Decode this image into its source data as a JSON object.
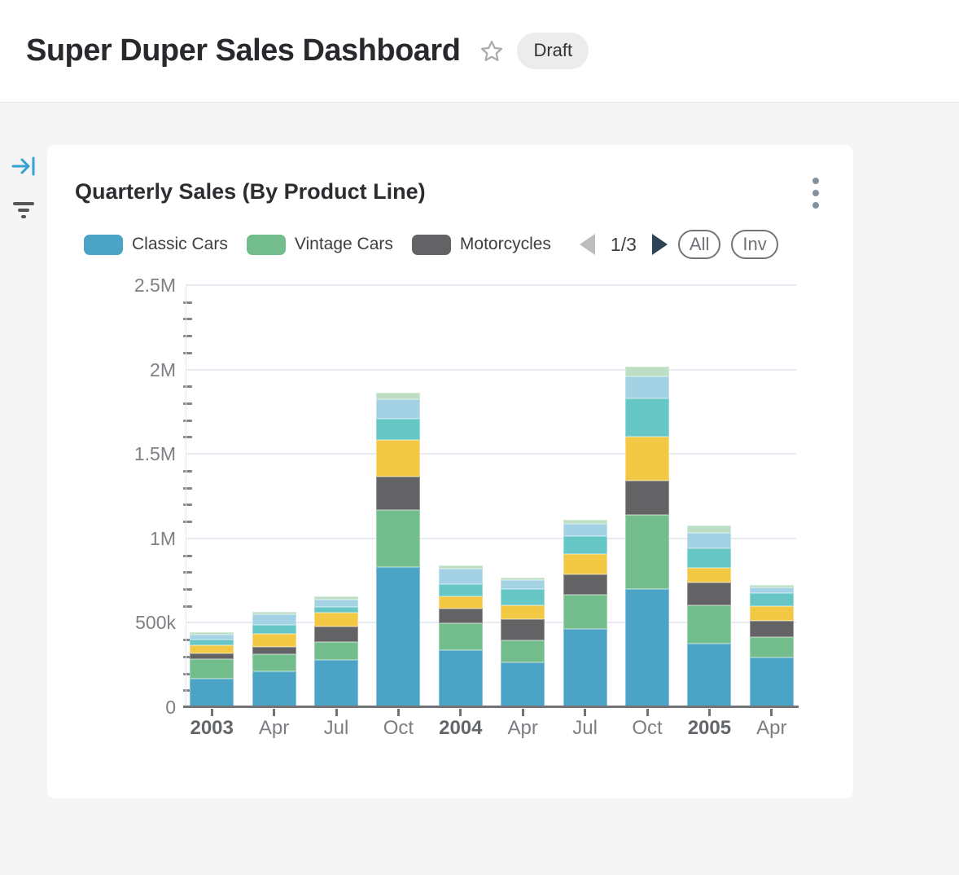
{
  "header": {
    "title": "Super Duper Sales Dashboard",
    "badge": "Draft"
  },
  "sidebar": {
    "icons": [
      "collapse-right-icon",
      "filter-icon"
    ]
  },
  "card": {
    "title": "Quarterly Sales (By Product Line)",
    "menu_icon": "kebab-menu-icon"
  },
  "legend": {
    "items": [
      {
        "label": "Classic Cars",
        "color": "#4ba3c6"
      },
      {
        "label": "Vintage Cars",
        "color": "#73bd8c"
      },
      {
        "label": "Motorcycles",
        "color": "#636365"
      }
    ],
    "page_indicator": "1/3",
    "prev_enabled": false,
    "next_enabled": true,
    "all_label": "All",
    "inv_label": "Inv"
  },
  "chart_data": {
    "type": "bar",
    "stacked": true,
    "title": "Quarterly Sales (By Product Line)",
    "categories": [
      "2003",
      "Apr",
      "Jul",
      "Oct",
      "2004",
      "Apr",
      "Jul",
      "Oct",
      "2005",
      "Apr"
    ],
    "bold_category_indices": [
      0,
      4,
      8
    ],
    "series": [
      {
        "name": "Classic Cars",
        "color": "#4ba3c6",
        "values": [
          169000,
          213000,
          280000,
          831000,
          338000,
          266000,
          464000,
          700000,
          377000,
          295000
        ]
      },
      {
        "name": "Vintage Cars",
        "color": "#73bd8c",
        "values": [
          116000,
          101000,
          106000,
          338000,
          160000,
          130000,
          203000,
          440000,
          227000,
          121000
        ]
      },
      {
        "name": "Motorcycles",
        "color": "#636365",
        "values": [
          34000,
          43000,
          92000,
          198000,
          87000,
          126000,
          121000,
          203000,
          135000,
          97000
        ]
      },
      {
        "name": "",
        "color": "#f3c845",
        "values": [
          48000,
          77000,
          82000,
          217000,
          72000,
          82000,
          121000,
          261000,
          87000,
          87000
        ]
      },
      {
        "name": "",
        "color": "#66c7c6",
        "values": [
          34000,
          53000,
          34000,
          126000,
          72000,
          97000,
          106000,
          227000,
          116000,
          77000
        ]
      },
      {
        "name": "",
        "color": "#a2d2e3",
        "values": [
          29000,
          63000,
          43000,
          116000,
          92000,
          53000,
          72000,
          130000,
          92000,
          34000
        ]
      },
      {
        "name": "",
        "color": "#bcdfc4",
        "values": [
          14000,
          14000,
          19000,
          39000,
          19000,
          14000,
          24000,
          58000,
          43000,
          14000
        ]
      }
    ],
    "ylim": [
      0,
      2500000
    ],
    "y_major_ticks": [
      {
        "value": 0,
        "label": "0"
      },
      {
        "value": 500000,
        "label": "500k"
      },
      {
        "value": 1000000,
        "label": "1M"
      },
      {
        "value": 1500000,
        "label": "1.5M"
      },
      {
        "value": 2000000,
        "label": "2M"
      },
      {
        "value": 2500000,
        "label": "2.5M"
      }
    ],
    "y_minor_tick_interval": 100000,
    "grid": "horizontal",
    "legend_position": "top"
  }
}
